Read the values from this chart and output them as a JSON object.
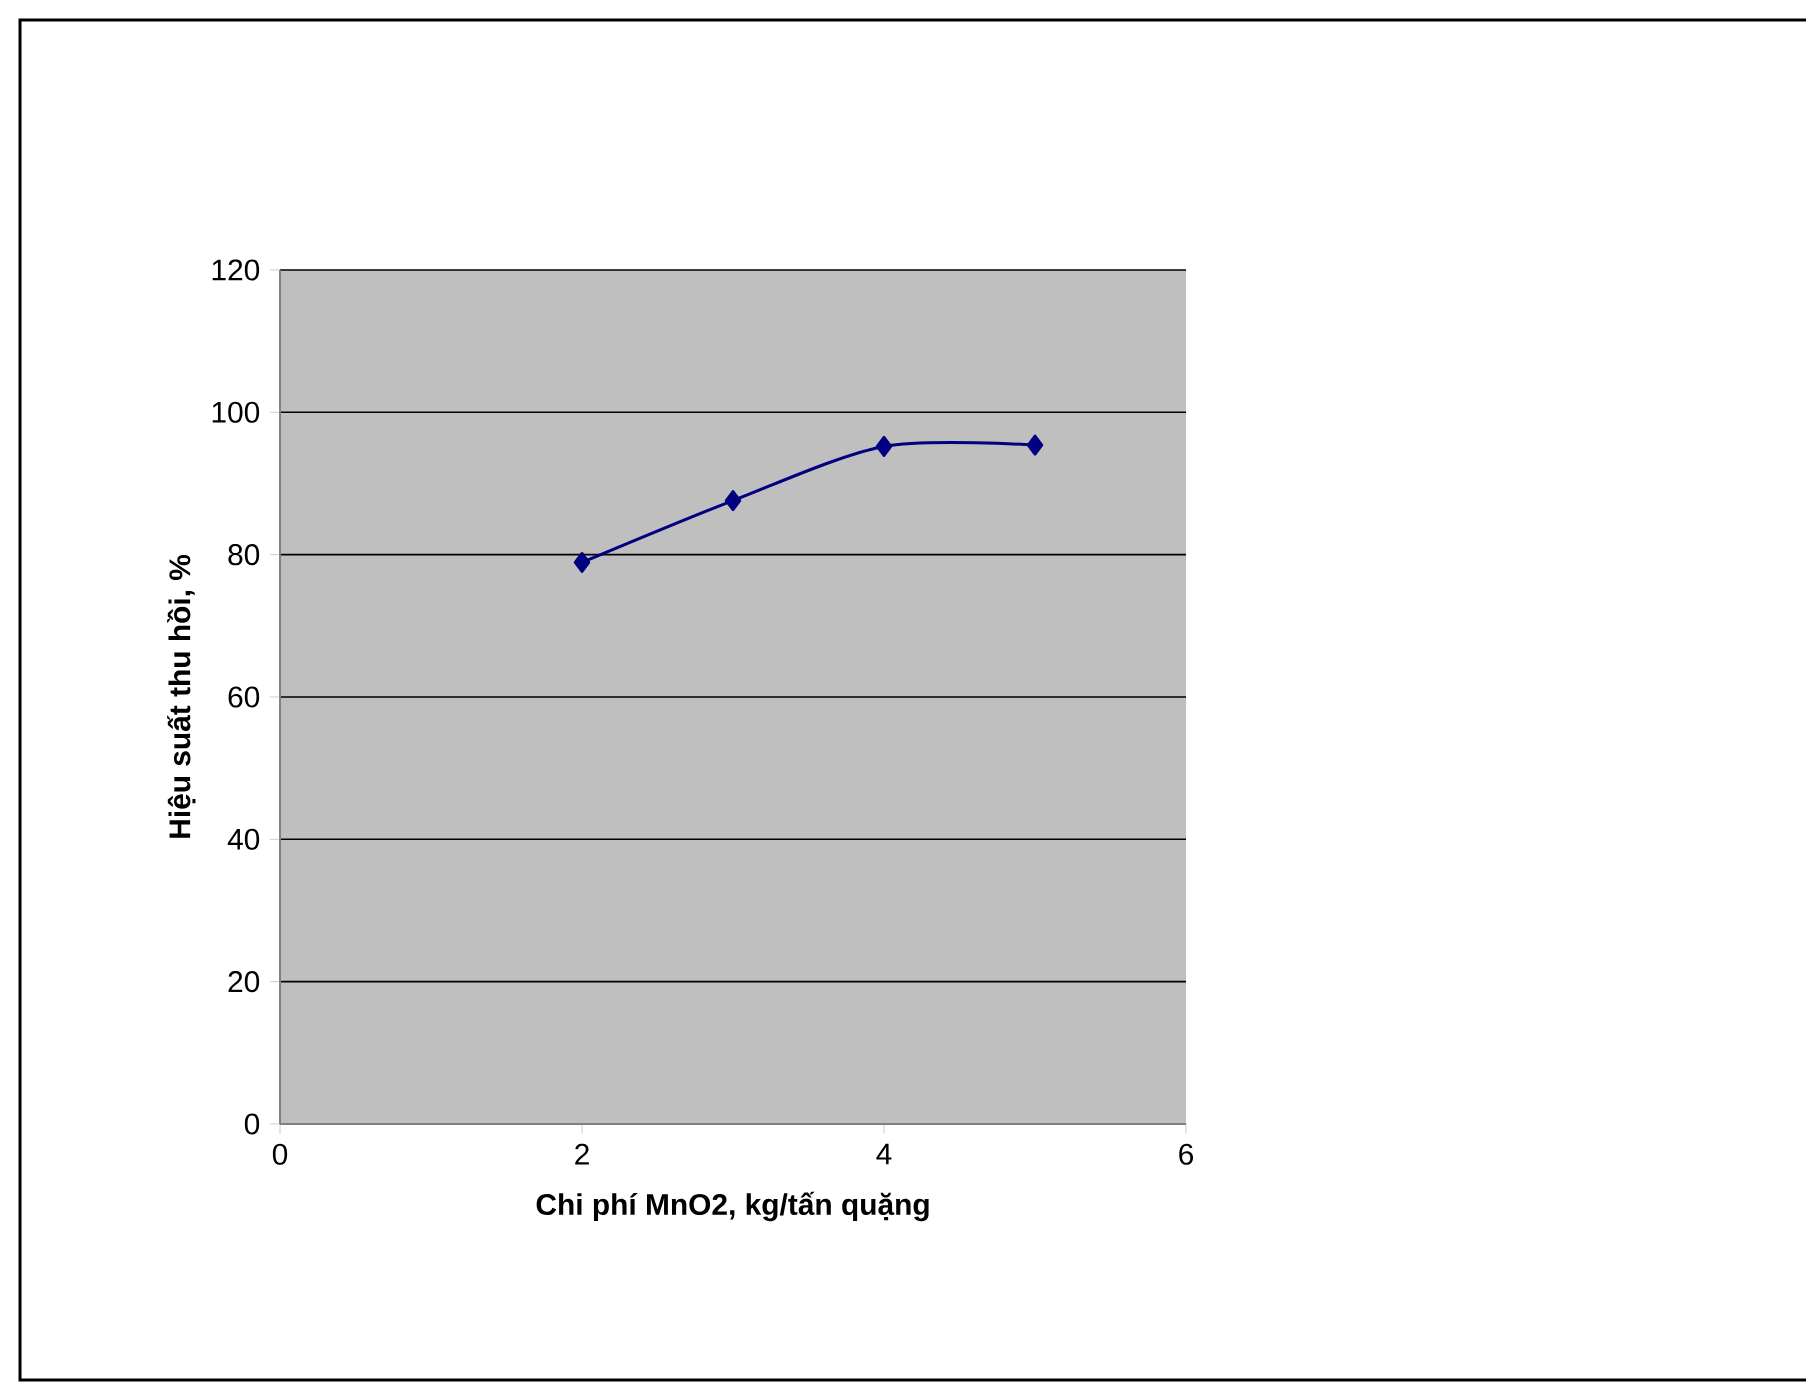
{
  "chart_data": {
    "type": "line",
    "xlabel": "Chi phí MnO2, kg/tấn quặng",
    "ylabel": "Hiệu suất thu hồi, %",
    "x": [
      2,
      3,
      4,
      5
    ],
    "series": [
      {
        "color": "#000080",
        "values": [
          78.9,
          87.6,
          95.2,
          95.4
        ]
      }
    ],
    "xlim": [
      0,
      6
    ],
    "xticks": [
      0,
      2,
      4,
      6
    ],
    "ylim": [
      0,
      120
    ],
    "yticks": [
      0,
      20,
      40,
      60,
      80,
      100,
      120
    ],
    "grid": "y",
    "marker": "diamond",
    "line_style": "solid"
  }
}
